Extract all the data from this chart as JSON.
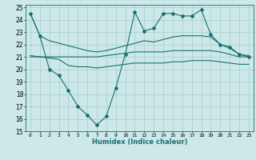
{
  "title": "",
  "xlabel": "Humidex (Indice chaleur)",
  "background_color": "#cce8e8",
  "line_color": "#1a7070",
  "grid_color": "#aacccc",
  "xlim": [
    -0.5,
    23.5
  ],
  "ylim": [
    15,
    25.2
  ],
  "yticks": [
    15,
    16,
    17,
    18,
    19,
    20,
    21,
    22,
    23,
    24,
    25
  ],
  "xticks": [
    0,
    1,
    2,
    3,
    4,
    5,
    6,
    7,
    8,
    9,
    10,
    11,
    12,
    13,
    14,
    15,
    16,
    17,
    18,
    19,
    20,
    21,
    22,
    23
  ],
  "series": [
    {
      "x": [
        0,
        1,
        2,
        3,
        4,
        5,
        6,
        7,
        8,
        9,
        10,
        11,
        12,
        13,
        14,
        15,
        16,
        17,
        18,
        19,
        20,
        21,
        22,
        23
      ],
      "y": [
        24.5,
        22.7,
        22.3,
        22.1,
        21.9,
        21.7,
        21.5,
        21.4,
        21.5,
        21.7,
        21.9,
        22.1,
        22.3,
        22.2,
        22.4,
        22.6,
        22.7,
        22.7,
        22.7,
        22.6,
        22.0,
        21.7,
        21.2,
        21.1
      ],
      "marker": false
    },
    {
      "x": [
        0,
        1,
        2,
        3,
        4,
        5,
        6,
        7,
        8,
        9,
        10,
        11,
        12,
        13,
        14,
        15,
        16,
        17,
        18,
        19,
        20,
        21,
        22,
        23
      ],
      "y": [
        21.1,
        21.0,
        21.0,
        21.0,
        21.0,
        21.0,
        21.0,
        21.0,
        21.1,
        21.2,
        21.3,
        21.4,
        21.4,
        21.4,
        21.4,
        21.5,
        21.5,
        21.5,
        21.5,
        21.5,
        21.4,
        21.2,
        21.0,
        21.0
      ],
      "marker": false
    },
    {
      "x": [
        0,
        1,
        2,
        3,
        4,
        5,
        6,
        7,
        8,
        9,
        10,
        11,
        12,
        13,
        14,
        15,
        16,
        17,
        18,
        19,
        20,
        21,
        22,
        23
      ],
      "y": [
        21.0,
        21.0,
        20.9,
        20.8,
        20.3,
        20.2,
        20.2,
        20.1,
        20.2,
        20.3,
        20.4,
        20.5,
        20.5,
        20.5,
        20.5,
        20.6,
        20.6,
        20.7,
        20.7,
        20.7,
        20.6,
        20.5,
        20.4,
        20.4
      ],
      "marker": false
    },
    {
      "x": [
        0,
        1,
        2,
        3,
        4,
        5,
        6,
        7,
        8,
        9,
        10,
        11,
        12,
        13,
        14,
        15,
        16,
        17,
        18,
        19,
        20,
        21,
        22,
        23
      ],
      "y": [
        24.5,
        22.7,
        20.0,
        19.5,
        18.3,
        17.0,
        16.3,
        15.5,
        16.2,
        18.5,
        21.2,
        24.6,
        23.1,
        23.3,
        24.5,
        24.5,
        24.3,
        24.3,
        24.8,
        22.8,
        22.0,
        21.8,
        21.2,
        21.0
      ],
      "marker": true
    }
  ]
}
